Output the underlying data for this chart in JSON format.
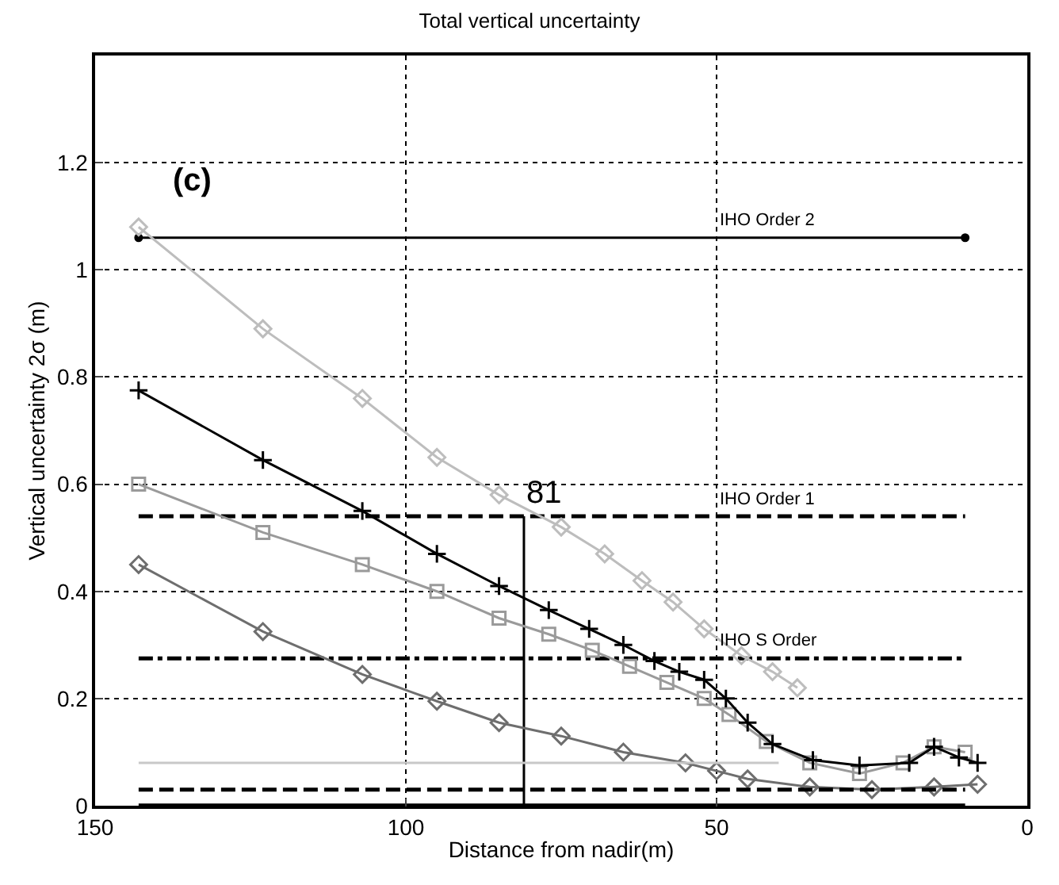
{
  "chart_data": {
    "type": "line",
    "title": "Total vertical uncertainty",
    "xlabel": "Distance from nadir(m)",
    "ylabel": "Vertical uncertainty 2σ (m)",
    "xlim": [
      150,
      0
    ],
    "xticks": [
      150,
      100,
      50,
      0
    ],
    "ylim": [
      0,
      1.4
    ],
    "yticks": [
      0,
      0.2,
      0.4,
      0.6,
      0.8,
      1,
      1.2
    ],
    "grid": true,
    "legend": false,
    "annotations": [
      "(c)",
      {
        "text": "81",
        "x": 81,
        "y": 0.54
      }
    ],
    "series": [
      {
        "name": "IHO Order 2",
        "color": "#000000",
        "x": [
          143,
          10
        ],
        "values": [
          1.06,
          1.06
        ],
        "marker": "circle",
        "line_style": "solid"
      },
      {
        "name": "IHO Order 1",
        "color": "#000000",
        "x": [
          143,
          10
        ],
        "values": [
          0.54,
          0.54
        ],
        "marker": "none",
        "line_style": "dashed"
      },
      {
        "name": "IHO S Order",
        "color": "#000000",
        "x": [
          143,
          10
        ],
        "values": [
          0.275,
          0.275
        ],
        "marker": "none",
        "line_style": "dashdot"
      },
      {
        "color": "#000000",
        "x": [
          81,
          81
        ],
        "values": [
          0,
          0.54
        ],
        "marker": "none",
        "line_style": "solid"
      },
      {
        "color": "#bdbdbd",
        "x": [
          143,
          123,
          107,
          95,
          85,
          75,
          68,
          62,
          57,
          52,
          46,
          41,
          37
        ],
        "values": [
          1.08,
          0.89,
          0.76,
          0.65,
          0.58,
          0.52,
          0.47,
          0.42,
          0.38,
          0.33,
          0.28,
          0.25,
          0.22
        ],
        "marker": "diamond",
        "line_style": "solid"
      },
      {
        "color": "#9a9a9a",
        "x": [
          143,
          123,
          107,
          95,
          85,
          77,
          70,
          64,
          58,
          52,
          48,
          42,
          35,
          27,
          20,
          15,
          10
        ],
        "values": [
          0.6,
          0.51,
          0.45,
          0.4,
          0.35,
          0.32,
          0.29,
          0.26,
          0.23,
          0.2,
          0.17,
          0.12,
          0.08,
          0.06,
          0.08,
          0.11,
          0.1
        ],
        "marker": "square",
        "line_style": "solid"
      },
      {
        "color": "#000000",
        "x": [
          143,
          123,
          107,
          95,
          85,
          77,
          70.5,
          65,
          60,
          56,
          52,
          48.5,
          45,
          41,
          34.5,
          27,
          19,
          15,
          11,
          8
        ],
        "values": [
          0.775,
          0.645,
          0.55,
          0.47,
          0.41,
          0.365,
          0.33,
          0.3,
          0.27,
          0.25,
          0.235,
          0.2,
          0.155,
          0.115,
          0.085,
          0.075,
          0.08,
          0.11,
          0.09,
          0.08
        ],
        "marker": "cross",
        "line_style": "solid"
      },
      {
        "color": "#6e6e6e",
        "x": [
          143,
          123,
          107,
          95,
          85,
          75,
          65,
          55,
          50,
          45,
          35,
          25,
          15,
          8
        ],
        "values": [
          0.45,
          0.325,
          0.245,
          0.195,
          0.155,
          0.13,
          0.1,
          0.08,
          0.065,
          0.05,
          0.035,
          0.03,
          0.035,
          0.04
        ],
        "marker": "diamond",
        "line_style": "solid"
      },
      {
        "color": "#c8c8c8",
        "x": [
          143,
          40
        ],
        "values": [
          0.08,
          0.08
        ],
        "marker": "none",
        "line_style": "solid"
      },
      {
        "color": "#000000",
        "x": [
          143,
          10
        ],
        "values": [
          0.03,
          0.03
        ],
        "marker": "none",
        "line_style": "dashed"
      },
      {
        "color": "#000000",
        "x": [
          143,
          10
        ],
        "values": [
          0.002,
          0.002
        ],
        "marker": "none",
        "line_style": "solid"
      }
    ]
  }
}
